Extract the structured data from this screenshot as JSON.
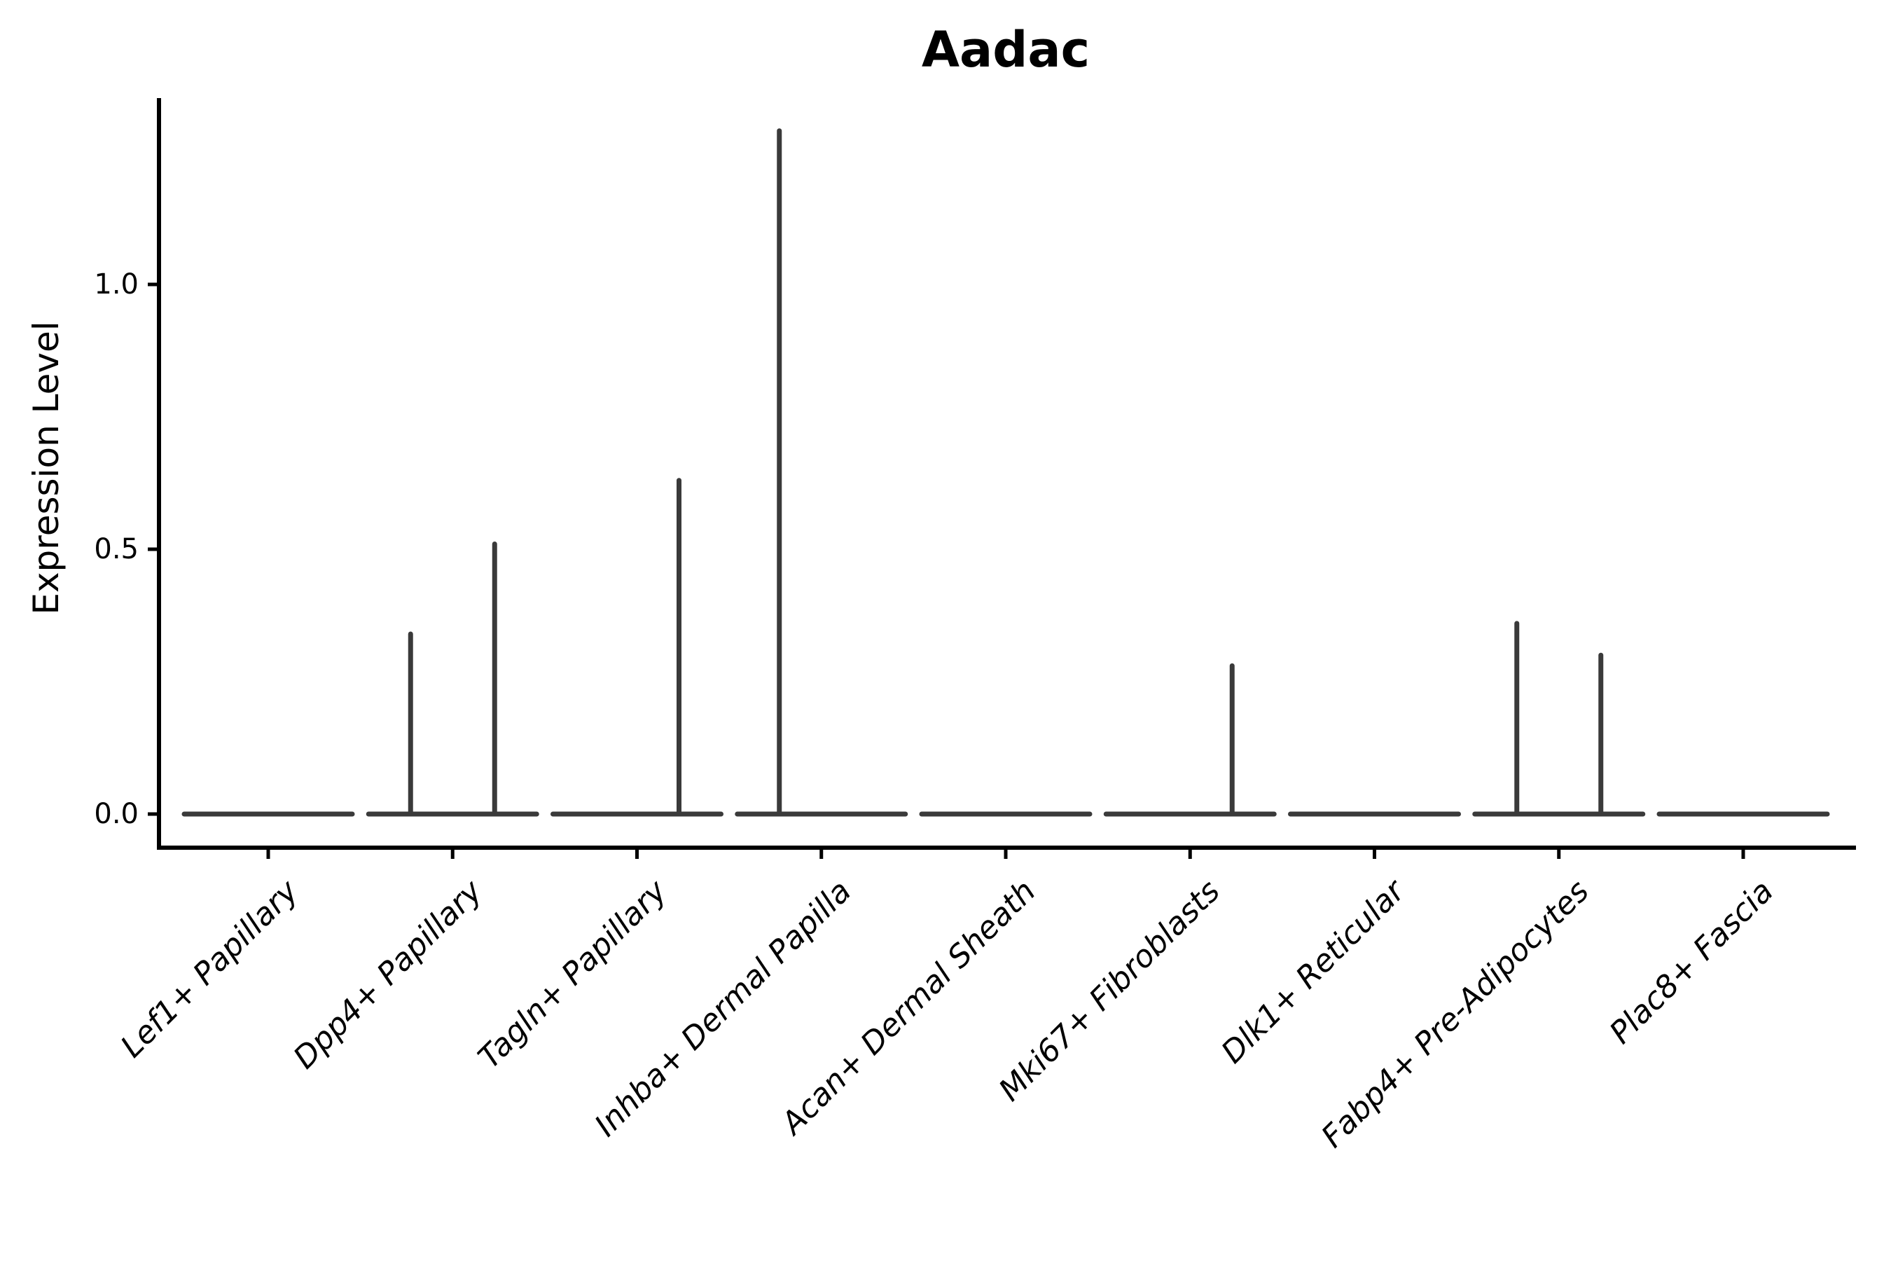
{
  "chart_data": {
    "type": "violin",
    "title": "Aadac",
    "ylabel": "Expression Level",
    "xlabel": "",
    "categories": [
      "Lef1+ Papillary",
      "Dpp4+ Papillary",
      "Tagln+ Papillary",
      "Inhba+ Dermal Papilla",
      "Acan+ Dermal Sheath",
      "Mki67+ Fibroblasts",
      "Dlk1+ Reticular",
      "Fabp4+ Pre-Adipocytes",
      "Plac8+ Fascia"
    ],
    "y_ticks": [
      {
        "label": "0.0",
        "value": 0.0
      },
      {
        "label": "0.5",
        "value": 0.5
      },
      {
        "label": "1.0",
        "value": 1.0
      }
    ],
    "ylim": [
      -0.06,
      1.35
    ],
    "grid": false,
    "legend": "none",
    "violins": [
      {
        "category": "Lef1+ Papillary",
        "baseline": 0.0,
        "spikes": []
      },
      {
        "category": "Dpp4+ Papillary",
        "baseline": 0.0,
        "spikes": [
          {
            "pos": "left",
            "value": 0.34
          },
          {
            "pos": "right",
            "value": 0.51
          }
        ]
      },
      {
        "category": "Tagln+ Papillary",
        "baseline": 0.0,
        "spikes": [
          {
            "pos": "right",
            "value": 0.63
          }
        ]
      },
      {
        "category": "Inhba+ Dermal Papilla",
        "baseline": 0.0,
        "spikes": [
          {
            "pos": "left",
            "value": 1.29
          }
        ]
      },
      {
        "category": "Acan+ Dermal Sheath",
        "baseline": 0.0,
        "spikes": []
      },
      {
        "category": "Mki67+ Fibroblasts",
        "baseline": 0.0,
        "spikes": [
          {
            "pos": "right",
            "value": 0.28
          }
        ]
      },
      {
        "category": "Dlk1+ Reticular",
        "baseline": 0.0,
        "spikes": []
      },
      {
        "category": "Fabp4+ Pre-Adipocytes",
        "baseline": 0.0,
        "spikes": [
          {
            "pos": "left",
            "value": 0.36
          },
          {
            "pos": "right",
            "value": 0.3
          }
        ]
      },
      {
        "category": "Plac8+ Fascia",
        "baseline": 0.0,
        "spikes": []
      }
    ],
    "colors": {
      "violin_stroke": "#3a3a3a",
      "axis": "#000000",
      "text": "#000000",
      "background": "#ffffff"
    }
  }
}
